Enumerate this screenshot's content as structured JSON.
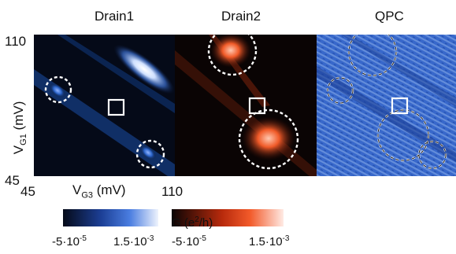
{
  "figure": {
    "panels": [
      {
        "title": "Drain1"
      },
      {
        "title": "Drain2"
      },
      {
        "title": "QPC"
      }
    ],
    "axes": {
      "y": {
        "label_main": "V",
        "label_sub": "G1",
        "label_unit": " (mV)",
        "tick_top": "110",
        "tick_bottom": "45"
      },
      "x": {
        "label_main": "V",
        "label_sub": "G3",
        "label_unit": " (mV)",
        "tick_left": "45",
        "tick_right": "110"
      }
    },
    "colorbar": {
      "g_prefix": "G (e",
      "g_sup": "2",
      "g_suffix": "/h)",
      "blue_min_base": "-5·10",
      "blue_min_exp": "-5",
      "blue_max_base": "1.5·10",
      "blue_max_exp": "-3",
      "red_min_base": "-5·10",
      "red_min_exp": "-5",
      "red_max_base": "1.5·10",
      "red_max_exp": "-3"
    },
    "colors": {
      "blue_dark": "#050a18",
      "blue_mid": "#2a63c8",
      "blue_light": "#e8eefb",
      "red_dark": "#0a0404",
      "red_mid": "#f04a18",
      "red_light": "#ffe9e2",
      "qpc_base": "#2f5fc5",
      "marker": "#ffffff"
    }
  }
}
